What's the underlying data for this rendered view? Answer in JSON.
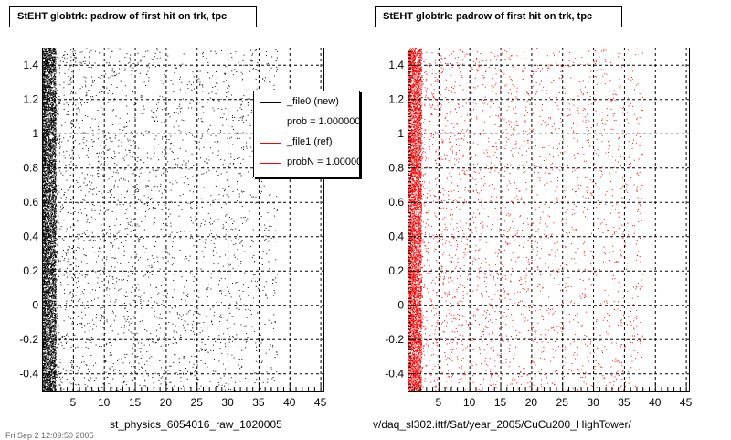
{
  "panels": [
    {
      "title": "StEHT globtrk: padrow of first hit on trk, tpc",
      "xlabel": "st_physics_6054016_raw_1020005",
      "color": "#000000"
    },
    {
      "title": "StEHT globtrk: padrow of first hit on trk, tpc",
      "xlabel": "v/daq_sl302.ittf/Sat/year_2005/CuCu200_HighTower/",
      "color": "#ff0000"
    }
  ],
  "legend": {
    "entries": [
      {
        "label": "_file0 (new)",
        "color": "#000000"
      },
      {
        "label": "prob = 1.000000",
        "color": "#000000"
      },
      {
        "label": "_file1 (ref)",
        "color": "#ff0000"
      },
      {
        "label": "probN = 1.000000",
        "color": "#ff0000"
      }
    ]
  },
  "footer": "Fri Sep  2 12:09:50 2005",
  "chart_data": [
    {
      "type": "scatter",
      "title": "StEHT globtrk: padrow of first hit on trk, tpc",
      "xlabel": "st_physics_6054016_raw_1020005",
      "ylabel": "",
      "xlim": [
        0,
        45.5
      ],
      "ylim": [
        -0.5,
        1.5
      ],
      "xticks": [
        5,
        10,
        15,
        20,
        25,
        30,
        35,
        40,
        45
      ],
      "yticks": [
        -0.4,
        -0.2,
        0,
        0.2,
        0.4,
        0.6,
        0.8,
        1,
        1.2,
        1.4
      ],
      "ytick_labels": [
        "-0.4",
        "-0.2",
        "-0",
        "0.2",
        "0.4",
        "0.6",
        "0.8",
        "1",
        "1.2",
        "1.4"
      ],
      "grid": true,
      "series": [
        {
          "name": "_file0 (new)",
          "color": "#000000",
          "density": "very dense near x≈0–2, sparse from x≈2 to x≈38"
        }
      ]
    },
    {
      "type": "scatter",
      "title": "StEHT globtrk: padrow of first hit on trk, tpc",
      "xlabel": "v/daq_sl302.ittf/Sat/year_2005/CuCu200_HighTower/",
      "ylabel": "",
      "xlim": [
        0,
        45.5
      ],
      "ylim": [
        -0.5,
        1.5
      ],
      "xticks": [
        5,
        10,
        15,
        20,
        25,
        30,
        35,
        40,
        45
      ],
      "yticks": [
        -0.4,
        -0.2,
        0,
        0.2,
        0.4,
        0.6,
        0.8,
        1,
        1.2,
        1.4
      ],
      "ytick_labels": [
        "-0.4",
        "-0.2",
        "-0",
        "0.2",
        "0.4",
        "0.6",
        "0.8",
        "1",
        "1.2",
        "1.4"
      ],
      "grid": true,
      "series": [
        {
          "name": "_file1 (ref)",
          "color": "#ff0000",
          "density": "very dense near x≈0–2, sparse from x≈2 to x≈38"
        }
      ]
    }
  ]
}
